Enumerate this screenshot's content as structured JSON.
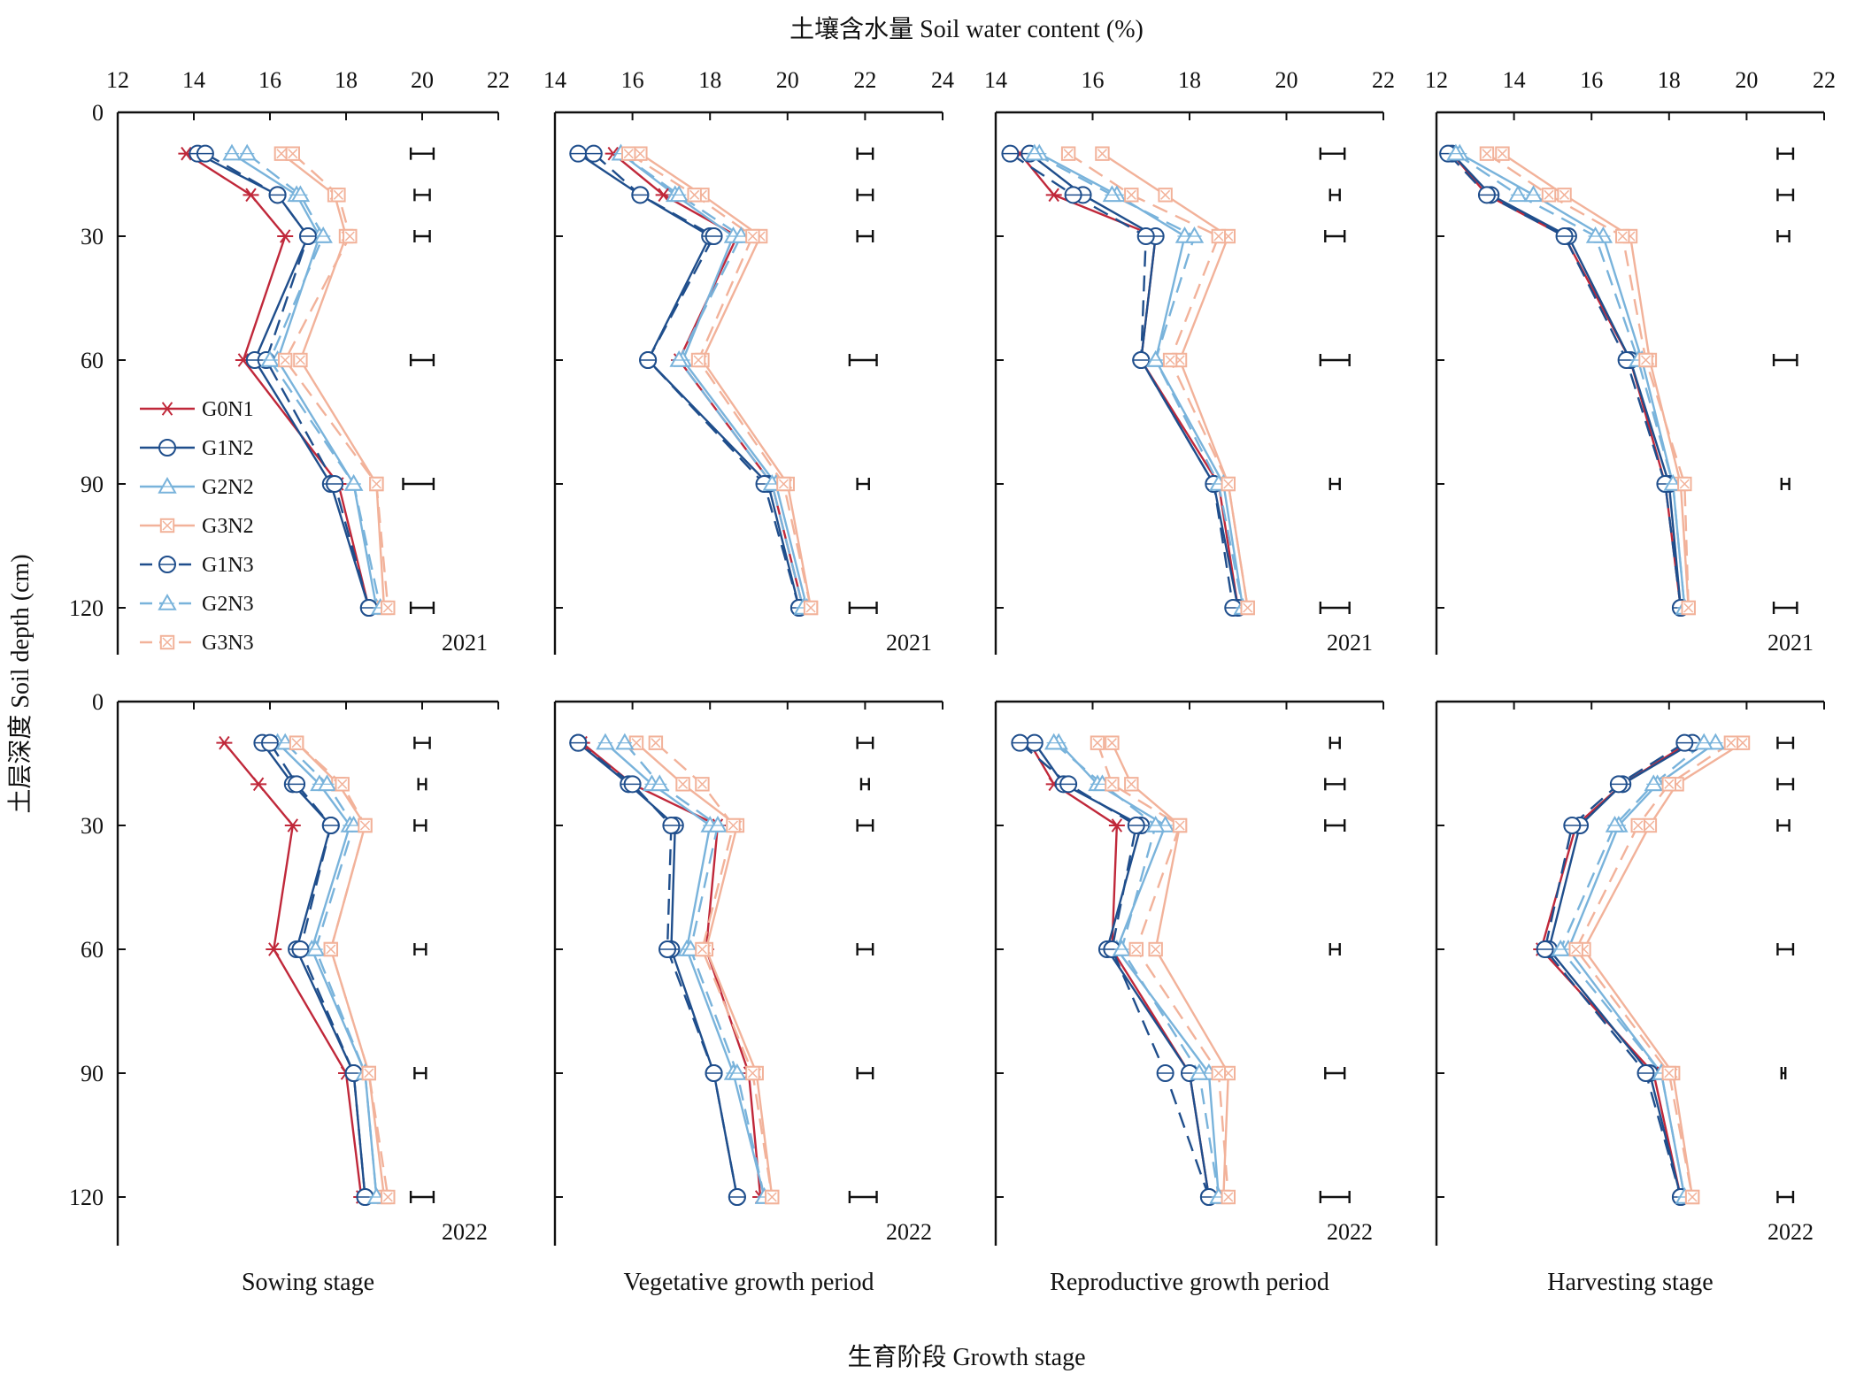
{
  "figure": {
    "top_title": "土壤含水量 Soil water content (%)",
    "y_title": "土层深度 Soil depth (cm)",
    "bottom_title": "生育阶段 Growth stage",
    "stages": [
      "Sowing stage",
      "Vegetative growth period",
      "Reproductive growth period",
      "Harvesting stage"
    ],
    "years": [
      "2021",
      "2022"
    ],
    "depth_ticks": [
      "0",
      "30",
      "60",
      "90",
      "120"
    ],
    "legend": [
      "G0N1",
      "G1N2",
      "G2N2",
      "G3N2",
      "G1N3",
      "G2N3",
      "G3N3"
    ]
  },
  "chart_data": {
    "type": "line",
    "depths": [
      10,
      20,
      30,
      60,
      90,
      120
    ],
    "ylim": [
      0,
      130
    ],
    "y_reversed": true,
    "series_styles": [
      {
        "name": "G0N1",
        "color": "#C0283A",
        "marker": "star",
        "dash": false
      },
      {
        "name": "G1N2",
        "color": "#1F4E8C",
        "marker": "circle",
        "dash": false
      },
      {
        "name": "G2N2",
        "color": "#79B3DB",
        "marker": "triangle",
        "dash": false
      },
      {
        "name": "G3N2",
        "color": "#F2B29A",
        "marker": "square",
        "dash": false
      },
      {
        "name": "G1N3",
        "color": "#1F4E8C",
        "marker": "circle",
        "dash": true
      },
      {
        "name": "G2N3",
        "color": "#79B3DB",
        "marker": "triangle",
        "dash": true
      },
      {
        "name": "G3N3",
        "color": "#F2B29A",
        "marker": "square",
        "dash": true
      }
    ],
    "panels": [
      {
        "stage": "Sowing stage",
        "year": "2021",
        "xlim": [
          12,
          22
        ],
        "xticks": [
          "12",
          "14",
          "16",
          "18",
          "20",
          "22"
        ],
        "series": [
          {
            "name": "G0N1",
            "values": [
              13.8,
              15.5,
              16.4,
              15.3,
              17.8,
              18.6
            ]
          },
          {
            "name": "G1N2",
            "values": [
              14.1,
              16.2,
              17.0,
              15.6,
              17.6,
              18.6
            ]
          },
          {
            "name": "G2N2",
            "values": [
              15.0,
              16.7,
              17.3,
              16.2,
              18.2,
              18.8
            ]
          },
          {
            "name": "G3N2",
            "values": [
              16.3,
              17.7,
              18.0,
              16.8,
              18.8,
              19.0
            ]
          },
          {
            "name": "G1N3",
            "values": [
              14.3,
              16.2,
              17.0,
              15.9,
              17.7,
              18.6
            ]
          },
          {
            "name": "G2N3",
            "values": [
              15.4,
              16.8,
              17.4,
              16.0,
              18.2,
              18.9
            ]
          },
          {
            "name": "G3N3",
            "values": [
              16.6,
              17.8,
              18.1,
              16.4,
              18.8,
              19.1
            ]
          }
        ],
        "error_bars": [
          [
            19.7,
            20.3
          ],
          [
            19.8,
            20.2
          ],
          [
            19.8,
            20.2
          ],
          [
            19.7,
            20.3
          ],
          [
            19.5,
            20.3
          ],
          [
            19.7,
            20.3
          ]
        ]
      },
      {
        "stage": "Vegetative growth period",
        "year": "2021",
        "xlim": [
          14,
          24
        ],
        "xticks": [
          "14",
          "16",
          "18",
          "20",
          "22",
          "24"
        ],
        "series": [
          {
            "name": "G0N1",
            "values": [
              15.5,
              16.8,
              18.7,
              17.2,
              19.6,
              20.4
            ]
          },
          {
            "name": "G1N2",
            "values": [
              14.6,
              16.2,
              18.0,
              16.4,
              19.5,
              20.3
            ]
          },
          {
            "name": "G2N2",
            "values": [
              15.7,
              17.1,
              18.6,
              17.3,
              19.7,
              20.5
            ]
          },
          {
            "name": "G3N2",
            "values": [
              16.2,
              17.8,
              19.3,
              17.8,
              20.0,
              20.6
            ]
          },
          {
            "name": "G1N3",
            "values": [
              15.0,
              16.2,
              18.1,
              16.4,
              19.4,
              20.3
            ]
          },
          {
            "name": "G2N3",
            "values": [
              15.7,
              17.2,
              18.8,
              17.2,
              19.6,
              20.4
            ]
          },
          {
            "name": "G3N3",
            "values": [
              15.9,
              17.6,
              19.1,
              17.7,
              19.9,
              20.6
            ]
          }
        ],
        "error_bars": [
          [
            21.8,
            22.2
          ],
          [
            21.8,
            22.2
          ],
          [
            21.8,
            22.2
          ],
          [
            21.6,
            22.3
          ],
          [
            21.8,
            22.1
          ],
          [
            21.6,
            22.3
          ]
        ]
      },
      {
        "stage": "Reproductive growth period",
        "year": "2021",
        "xlim": [
          14,
          22
        ],
        "xticks": [
          "14",
          "16",
          "18",
          "20",
          "22"
        ],
        "series": [
          {
            "name": "G0N1",
            "values": [
              14.5,
              15.2,
              17.3,
              17.0,
              18.6,
              19.0
            ]
          },
          {
            "name": "G1N2",
            "values": [
              14.7,
              15.8,
              17.3,
              17.0,
              18.5,
              19.0
            ]
          },
          {
            "name": "G2N2",
            "values": [
              14.9,
              16.5,
              17.9,
              17.3,
              18.7,
              19.1
            ]
          },
          {
            "name": "G3N2",
            "values": [
              16.2,
              17.5,
              18.8,
              17.8,
              18.8,
              19.2
            ]
          },
          {
            "name": "G1N3",
            "values": [
              14.3,
              15.6,
              17.1,
              17.0,
              18.5,
              18.9
            ]
          },
          {
            "name": "G2N3",
            "values": [
              14.8,
              16.4,
              18.1,
              17.3,
              18.6,
              19.1
            ]
          },
          {
            "name": "G3N3",
            "values": [
              15.5,
              16.8,
              18.6,
              17.6,
              18.8,
              19.2
            ]
          }
        ],
        "error_bars": [
          [
            20.7,
            21.2
          ],
          [
            20.9,
            21.1
          ],
          [
            20.8,
            21.2
          ],
          [
            20.7,
            21.3
          ],
          [
            20.9,
            21.1
          ],
          [
            20.7,
            21.3
          ]
        ]
      },
      {
        "stage": "Harvesting stage",
        "year": "2021",
        "xlim": [
          12,
          22
        ],
        "xticks": [
          "12",
          "14",
          "16",
          "18",
          "20",
          "22"
        ],
        "series": [
          {
            "name": "G0N1",
            "values": [
              12.4,
              13.3,
              15.3,
              17.0,
              17.9,
              18.3
            ]
          },
          {
            "name": "G1N2",
            "values": [
              12.4,
              13.4,
              15.4,
              17.0,
              18.0,
              18.3
            ]
          },
          {
            "name": "G2N2",
            "values": [
              12.6,
              14.5,
              16.3,
              17.3,
              18.1,
              18.4
            ]
          },
          {
            "name": "G3N2",
            "values": [
              13.7,
              15.3,
              17.0,
              17.5,
              18.3,
              18.5
            ]
          },
          {
            "name": "G1N3",
            "values": [
              12.3,
              13.3,
              15.3,
              16.9,
              17.9,
              18.3
            ]
          },
          {
            "name": "G2N3",
            "values": [
              12.5,
              14.1,
              16.1,
              17.2,
              18.1,
              18.4
            ]
          },
          {
            "name": "G3N3",
            "values": [
              13.3,
              14.9,
              16.8,
              17.4,
              18.4,
              18.5
            ]
          }
        ],
        "error_bars": [
          [
            20.8,
            21.2
          ],
          [
            20.8,
            21.2
          ],
          [
            20.8,
            21.1
          ],
          [
            20.7,
            21.3
          ],
          [
            20.9,
            21.1
          ],
          [
            20.7,
            21.3
          ]
        ]
      },
      {
        "stage": "Sowing stage",
        "year": "2022",
        "xlim": [
          12,
          22
        ],
        "xticks": [],
        "series": [
          {
            "name": "G0N1",
            "values": [
              14.8,
              15.7,
              16.6,
              16.1,
              18.0,
              18.4
            ]
          },
          {
            "name": "G1N2",
            "values": [
              15.8,
              16.6,
              17.6,
              16.7,
              18.2,
              18.5
            ]
          },
          {
            "name": "G2N2",
            "values": [
              16.2,
              17.3,
              18.1,
              17.1,
              18.5,
              18.8
            ]
          },
          {
            "name": "G3N2",
            "values": [
              16.7,
              17.8,
              18.5,
              17.6,
              18.6,
              19.0
            ]
          },
          {
            "name": "G1N3",
            "values": [
              16.0,
              16.7,
              17.6,
              16.8,
              18.2,
              18.5
            ]
          },
          {
            "name": "G2N3",
            "values": [
              16.4,
              17.5,
              18.2,
              17.2,
              18.5,
              18.8
            ]
          },
          {
            "name": "G3N3",
            "values": [
              16.7,
              17.9,
              18.5,
              17.6,
              18.6,
              19.1
            ]
          }
        ],
        "error_bars": [
          [
            19.8,
            20.2
          ],
          [
            19.9,
            20.1
          ],
          [
            19.8,
            20.1
          ],
          [
            19.8,
            20.1
          ],
          [
            19.8,
            20.1
          ],
          [
            19.7,
            20.3
          ]
        ]
      },
      {
        "stage": "Vegetative growth period",
        "year": "2022",
        "xlim": [
          14,
          24
        ],
        "xticks": [],
        "series": [
          {
            "name": "G0N1",
            "values": [
              14.7,
              16.0,
              18.2,
              17.9,
              19.0,
              19.3
            ]
          },
          {
            "name": "G1N2",
            "values": [
              14.6,
              15.9,
              17.1,
              17.0,
              18.1,
              18.7
            ]
          },
          {
            "name": "G2N2",
            "values": [
              15.3,
              16.5,
              18.0,
              17.4,
              18.6,
              19.4
            ]
          },
          {
            "name": "G3N2",
            "values": [
              16.1,
              17.3,
              18.7,
              17.9,
              19.2,
              19.6
            ]
          },
          {
            "name": "G1N3",
            "values": [
              14.6,
              16.0,
              17.0,
              16.9,
              18.1,
              18.7
            ]
          },
          {
            "name": "G2N3",
            "values": [
              15.8,
              16.7,
              18.2,
              17.5,
              18.7,
              19.4
            ]
          },
          {
            "name": "G3N3",
            "values": [
              16.6,
              17.8,
              18.6,
              17.8,
              19.1,
              19.6
            ]
          }
        ],
        "error_bars": [
          [
            21.8,
            22.2
          ],
          [
            21.9,
            22.1
          ],
          [
            21.8,
            22.2
          ],
          [
            21.8,
            22.2
          ],
          [
            21.8,
            22.2
          ],
          [
            21.6,
            22.3
          ]
        ]
      },
      {
        "stage": "Reproductive growth period",
        "year": "2022",
        "xlim": [
          14,
          22
        ],
        "xticks": [],
        "series": [
          {
            "name": "G0N1",
            "values": [
              14.7,
              15.2,
              16.5,
              16.4,
              18.0,
              18.4
            ]
          },
          {
            "name": "G1N2",
            "values": [
              14.8,
              15.4,
              17.0,
              16.3,
              18.0,
              18.4
            ]
          },
          {
            "name": "G2N2",
            "values": [
              15.3,
              16.1,
              17.5,
              16.5,
              18.4,
              18.6
            ]
          },
          {
            "name": "G3N2",
            "values": [
              16.4,
              16.8,
              17.8,
              17.3,
              18.8,
              18.7
            ]
          },
          {
            "name": "G1N3",
            "values": [
              14.5,
              15.5,
              16.9,
              16.4,
              17.5,
              18.4
            ]
          },
          {
            "name": "G2N3",
            "values": [
              15.2,
              16.2,
              17.3,
              16.6,
              18.2,
              18.6
            ]
          },
          {
            "name": "G3N3",
            "values": [
              16.1,
              16.4,
              17.8,
              16.9,
              18.6,
              18.8
            ]
          }
        ],
        "error_bars": [
          [
            20.9,
            21.1
          ],
          [
            20.8,
            21.2
          ],
          [
            20.8,
            21.2
          ],
          [
            20.9,
            21.1
          ],
          [
            20.8,
            21.2
          ],
          [
            20.7,
            21.3
          ]
        ]
      },
      {
        "stage": "Harvesting stage",
        "year": "2022",
        "xlim": [
          12,
          22
        ],
        "xticks": [],
        "series": [
          {
            "name": "G0N1",
            "values": [
              18.5,
              16.8,
              15.6,
              14.7,
              17.6,
              18.3
            ]
          },
          {
            "name": "G1N2",
            "values": [
              18.6,
              16.8,
              15.7,
              14.9,
              17.5,
              18.3
            ]
          },
          {
            "name": "G2N2",
            "values": [
              19.2,
              17.7,
              16.7,
              15.4,
              17.8,
              18.4
            ]
          },
          {
            "name": "G3N2",
            "values": [
              19.9,
              18.2,
              17.5,
              15.8,
              18.1,
              18.6
            ]
          },
          {
            "name": "G1N3",
            "values": [
              18.4,
              16.7,
              15.5,
              14.8,
              17.4,
              18.3
            ]
          },
          {
            "name": "G2N3",
            "values": [
              18.9,
              17.6,
              16.6,
              15.2,
              17.8,
              18.4
            ]
          },
          {
            "name": "G3N3",
            "values": [
              19.6,
              18.0,
              17.2,
              15.6,
              18.0,
              18.6
            ]
          }
        ],
        "error_bars": [
          [
            20.8,
            21.2
          ],
          [
            20.8,
            21.2
          ],
          [
            20.8,
            21.1
          ],
          [
            20.8,
            21.2
          ],
          [
            20.9,
            21.0
          ],
          [
            20.8,
            21.2
          ]
        ]
      }
    ]
  }
}
